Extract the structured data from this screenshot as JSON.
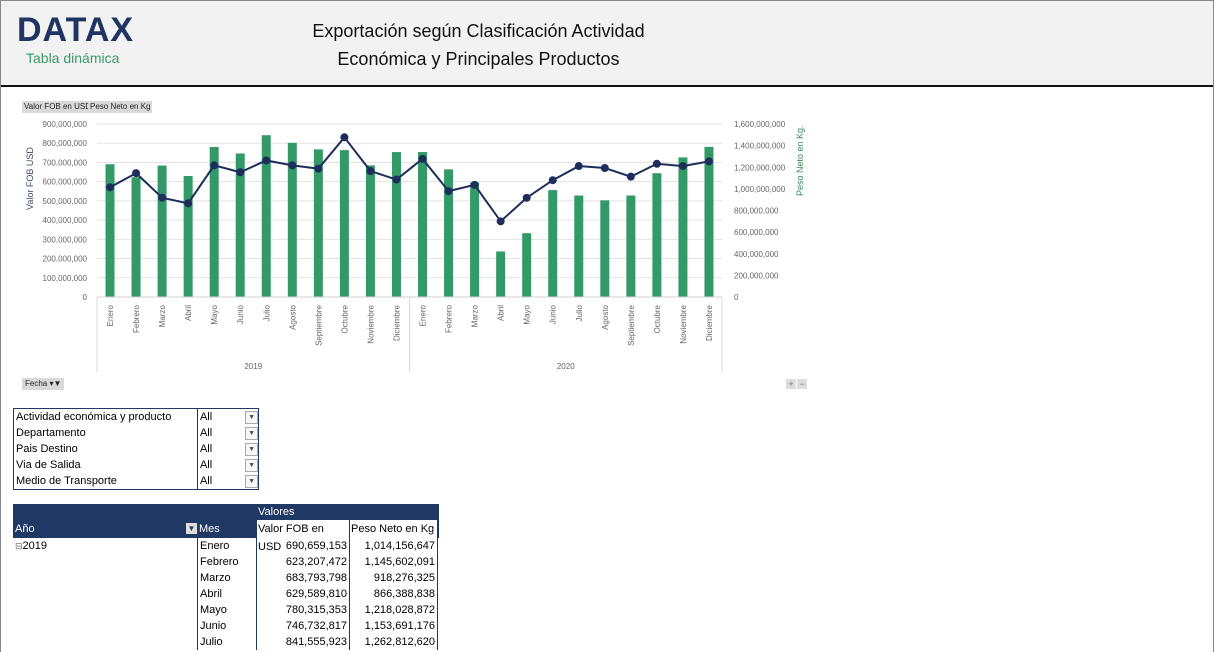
{
  "header": {
    "logo": "DATAX",
    "logo_subtitle": "Tabla dinámica",
    "title_line1": "Exportación según Clasificación Actividad",
    "title_line2": "Económica y Principales Productos"
  },
  "chart_controls": {
    "legend_buttons": [
      "Valor FOB en USD",
      "Peso Neto en Kg"
    ],
    "fecha_button": "Fecha",
    "zoom_in": "+",
    "zoom_out": "−"
  },
  "colors": {
    "bar": "#339966",
    "line": "#1f2d5c",
    "header_navy": "#203864"
  },
  "chart_data": {
    "type": "bar+line",
    "categories": [
      "Enero",
      "Febrero",
      "Marzo",
      "Abril",
      "Mayo",
      "Junio",
      "Julio",
      "Agosto",
      "Septiembre",
      "Octubre",
      "Noviembre",
      "Diciembre",
      "Enero",
      "Febrero",
      "Marzo",
      "Abril",
      "Mayo",
      "Junio",
      "Julio",
      "Agosto",
      "Septiembre",
      "Octubre",
      "Noviembre",
      "Diciembre"
    ],
    "groups": [
      {
        "label": "2019",
        "count": 12
      },
      {
        "label": "2020",
        "count": 12
      }
    ],
    "series": [
      {
        "name": "Valor FOB en USD",
        "type": "bar",
        "axis": "left",
        "values": [
          690659153,
          623207472,
          683793798,
          629589810,
          780315353,
          746732817,
          841555923,
          802000000,
          768000000,
          764000000,
          685000000,
          754000000,
          754000000,
          664000000,
          596000000,
          237000000,
          332000000,
          556000000,
          528000000,
          503000000,
          528000000,
          644000000,
          726000000,
          781000000
        ]
      },
      {
        "name": "Peso Neto en Kg",
        "type": "line",
        "axis": "right",
        "values": [
          1014156647,
          1145602091,
          918276325,
          866388838,
          1218028872,
          1153691176,
          1262812620,
          1217000000,
          1187000000,
          1477000000,
          1165000000,
          1086000000,
          1278000000,
          979000000,
          1037000000,
          700000000,
          917000000,
          1080000000,
          1211000000,
          1193000000,
          1113000000,
          1232000000,
          1211000000,
          1254000000
        ]
      }
    ],
    "ylabel_left": "Valor FOB USD",
    "ylabel_right": "Peso Neto en Kg.",
    "ylim_left": [
      0,
      900000000
    ],
    "ylim_right": [
      0,
      1600000000
    ],
    "yticks_left": [
      "0",
      "100,000,000",
      "200,000,000",
      "300,000,000",
      "400,000,000",
      "500,000,000",
      "600,000,000",
      "700,000,000",
      "800,000,000",
      "900,000,000"
    ],
    "yticks_right": [
      "0",
      "200,000,000",
      "400,000,000",
      "600,000,000",
      "800,000,000",
      "1,000,000,000",
      "1,200,000,000",
      "1,400,000,000",
      "1,600,000,000"
    ],
    "grid": true
  },
  "filters": [
    {
      "label": "Actividad económica y producto",
      "value": "All"
    },
    {
      "label": "Departamento",
      "value": "All"
    },
    {
      "label": "Pais Destino",
      "value": "All"
    },
    {
      "label": "Via de Salida",
      "value": "All"
    },
    {
      "label": "Medio de Transporte",
      "value": "All"
    }
  ],
  "pivot": {
    "values_header": "Valores",
    "col_year": "Año",
    "col_month": "Mes",
    "col_fob": "Valor FOB en USD",
    "col_peso": "Peso Neto en Kg",
    "year": "2019",
    "expand_icon": "⊟",
    "rows": [
      {
        "mes": "Enero",
        "fob": "690,659,153",
        "peso": "1,014,156,647"
      },
      {
        "mes": "Febrero",
        "fob": "623,207,472",
        "peso": "1,145,602,091"
      },
      {
        "mes": "Marzo",
        "fob": "683,793,798",
        "peso": "918,276,325"
      },
      {
        "mes": "Abril",
        "fob": "629,589,810",
        "peso": "866,388,838"
      },
      {
        "mes": "Mayo",
        "fob": "780,315,353",
        "peso": "1,218,028,872"
      },
      {
        "mes": "Junio",
        "fob": "746,732,817",
        "peso": "1,153,691,176"
      },
      {
        "mes": "Julio",
        "fob": "841,555,923",
        "peso": "1,262,812,620"
      }
    ]
  }
}
